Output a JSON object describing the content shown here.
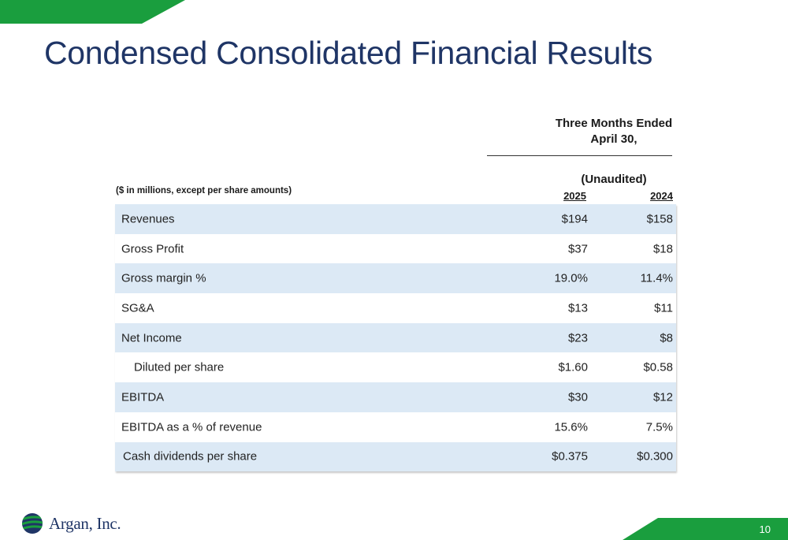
{
  "title": "Condensed Consolidated Financial Results",
  "header": {
    "period_line1": "Three Months Ended",
    "period_line2": "April 30,",
    "audit_status": "(Unaudited)",
    "units": "($ in millions, except per share amounts)",
    "year_current": "2025",
    "year_prior": "2024"
  },
  "rows": [
    {
      "label": "Revenues",
      "v2025": "$194",
      "v2024": "$158"
    },
    {
      "label": "Gross Profit",
      "v2025": "$37",
      "v2024": "$18"
    },
    {
      "label": "Gross margin %",
      "v2025": "19.0%",
      "v2024": "11.4%"
    },
    {
      "label": "SG&A",
      "v2025": "$13",
      "v2024": "$11"
    },
    {
      "label": "Net Income",
      "v2025": "$23",
      "v2024": "$8"
    },
    {
      "label": "Diluted per share",
      "v2025": "$1.60",
      "v2024": "$0.58"
    },
    {
      "label": "EBITDA",
      "v2025": "$30",
      "v2024": "$12"
    },
    {
      "label": "EBITDA as a % of revenue",
      "v2025": "15.6%",
      "v2024": "7.5%"
    },
    {
      "label": "Cash dividends per share",
      "v2025": "$0.375",
      "v2024": "$0.300"
    }
  ],
  "footer": {
    "company_name": "Argan, Inc.",
    "page_number": "10"
  },
  "colors": {
    "accent_green": "#1a9e3e",
    "title_navy": "#1f3566",
    "row_shade": "#dce9f5"
  }
}
